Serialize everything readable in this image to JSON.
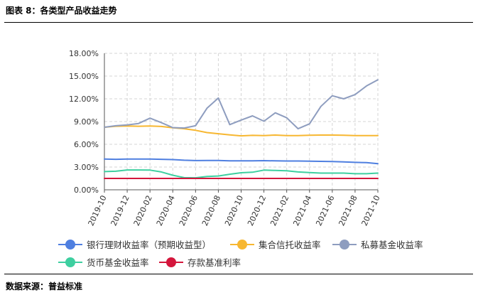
{
  "figure": {
    "title": "图表 8：各类型产品收益走势",
    "source": "数据来源：普益标准"
  },
  "colors": {
    "bank_wealth": "#4f7fe0",
    "trust": "#f7b731",
    "private_fund": "#8e9dbf",
    "money_fund": "#3ecfa0",
    "deposit": "#d4163c"
  },
  "chart_data": {
    "type": "line",
    "x": [
      "2019-10",
      "2019-11",
      "2019-12",
      "2020-01",
      "2020-02",
      "2020-03",
      "2020-04",
      "2020-05",
      "2020-06",
      "2020-07",
      "2020-08",
      "2020-09",
      "2020-10",
      "2020-11",
      "2020-12",
      "2021-01",
      "2021-02",
      "2021-03",
      "2021-04",
      "2021-05",
      "2021-06",
      "2021-07",
      "2021-08",
      "2021-09",
      "2021-10"
    ],
    "x_tick_labels": [
      "2019-10",
      "2019-12",
      "2020-02",
      "2020-04",
      "2020-06",
      "2020-08",
      "2020-10",
      "2020-12",
      "2021-02",
      "2021-04",
      "2021-06",
      "2021-08",
      "2021-10"
    ],
    "y_ticks": [
      "0.00%",
      "3.00%",
      "6.00%",
      "9.00%",
      "12.00%",
      "15.00%",
      "18.00%"
    ],
    "ylim": [
      0,
      18
    ],
    "grid": true,
    "legend_position": "bottom",
    "series": [
      {
        "key": "bank_wealth",
        "name": "银行理财收益率（预期收益型）",
        "values": [
          4.05,
          4.02,
          4.05,
          4.05,
          4.05,
          4.02,
          3.98,
          3.9,
          3.85,
          3.87,
          3.86,
          3.82,
          3.82,
          3.82,
          3.84,
          3.82,
          3.8,
          3.8,
          3.78,
          3.75,
          3.72,
          3.68,
          3.62,
          3.58,
          3.45
        ]
      },
      {
        "key": "trust",
        "name": "集合信托收益率",
        "values": [
          8.25,
          8.38,
          8.42,
          8.38,
          8.42,
          8.35,
          8.18,
          8.05,
          7.85,
          7.55,
          7.4,
          7.25,
          7.12,
          7.18,
          7.15,
          7.22,
          7.15,
          7.15,
          7.2,
          7.22,
          7.22,
          7.2,
          7.15,
          7.15,
          7.15
        ]
      },
      {
        "key": "private_fund",
        "name": "私募基金收益率",
        "values": [
          8.25,
          8.45,
          8.55,
          8.75,
          9.45,
          8.85,
          8.2,
          8.15,
          8.45,
          10.75,
          12.1,
          8.6,
          9.2,
          9.75,
          9.05,
          10.15,
          9.5,
          8.05,
          8.7,
          11.0,
          12.4,
          12.0,
          12.55,
          13.7,
          14.5
        ]
      },
      {
        "key": "money_fund",
        "name": "货币基金收益率",
        "values": [
          2.4,
          2.45,
          2.62,
          2.62,
          2.6,
          2.35,
          1.92,
          1.6,
          1.58,
          1.75,
          1.82,
          2.05,
          2.25,
          2.32,
          2.6,
          2.55,
          2.5,
          2.35,
          2.28,
          2.2,
          2.2,
          2.2,
          2.12,
          2.12,
          2.2
        ]
      },
      {
        "key": "deposit",
        "name": "存款基准利率",
        "values": [
          1.5,
          1.5,
          1.5,
          1.5,
          1.5,
          1.5,
          1.5,
          1.5,
          1.5,
          1.5,
          1.5,
          1.5,
          1.5,
          1.5,
          1.5,
          1.5,
          1.5,
          1.5,
          1.5,
          1.5,
          1.5,
          1.5,
          1.5,
          1.5,
          1.5
        ]
      }
    ]
  }
}
